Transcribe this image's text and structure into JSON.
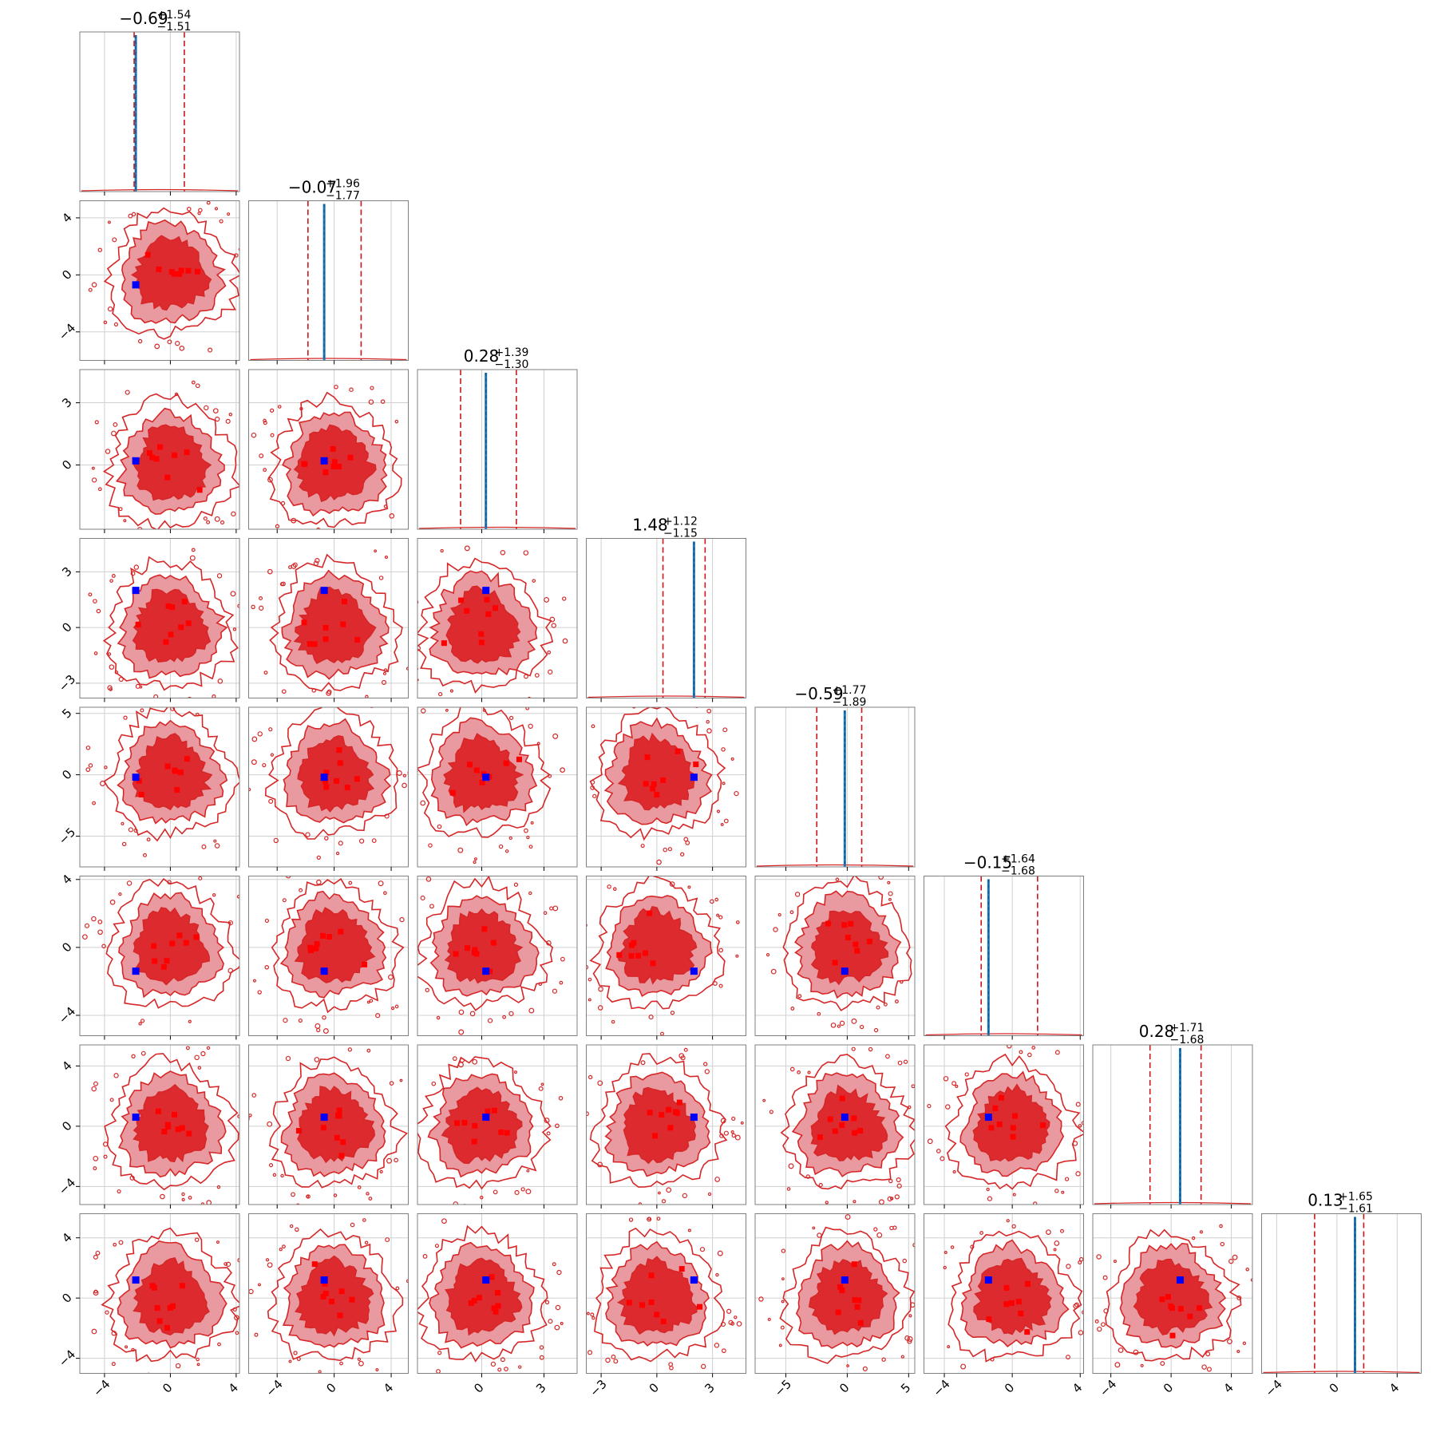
{
  "chart_data": {
    "type": "corner",
    "n_params": 8,
    "grid": true,
    "colors": {
      "contour_line": "#d62728",
      "contour_fill_outer": "#e89aa0",
      "contour_fill_inner": "#dd2a2f",
      "points": "#ff0000",
      "truth_marker": "#0000ff",
      "posterior_line": "#1f77b4",
      "quantile_line": "#c9181d"
    },
    "params": [
      {
        "median": -0.69,
        "plus": "+1.54",
        "minus": "−1.51",
        "title_main": "−0.69",
        "lim": [
          -5.5,
          4.2
        ],
        "ticks": [
          -4,
          0,
          4
        ],
        "tick_labels": [
          "−4",
          "0",
          "4"
        ],
        "q_lo": -2.2,
        "q_hi": 0.85,
        "truth": -2.1,
        "row_ticks_shown": false
      },
      {
        "median": -0.07,
        "plus": "+1.96",
        "minus": "−1.77",
        "title_main": "−0.07",
        "lim": [
          -6.0,
          5.2
        ],
        "ticks": [
          -4,
          0,
          4
        ],
        "tick_labels": [
          "−4",
          "0",
          "4"
        ],
        "q_lo": -1.84,
        "q_hi": 1.89,
        "truth": -0.7,
        "row_ticks_shown": true
      },
      {
        "median": 0.28,
        "plus": "+1.39",
        "minus": "−1.30",
        "title_main": "0.28",
        "lim": [
          -3.1,
          4.6
        ],
        "ticks": [
          0,
          3
        ],
        "tick_labels": [
          "0",
          "3"
        ],
        "q_lo": -1.02,
        "q_hi": 1.67,
        "truth": 0.2,
        "row_ticks_shown": true
      },
      {
        "median": 1.48,
        "plus": "+1.12",
        "minus": "−1.15",
        "title_main": "1.48",
        "lim": [
          -3.8,
          4.8
        ],
        "ticks": [
          -3,
          0,
          3
        ],
        "tick_labels": [
          "−3",
          "0",
          "3"
        ],
        "q_lo": 0.33,
        "q_hi": 2.6,
        "truth": 2.0,
        "row_ticks_shown": true
      },
      {
        "median": -0.59,
        "plus": "+1.77",
        "minus": "−1.89",
        "title_main": "−0.59",
        "lim": [
          -7.5,
          5.5
        ],
        "ticks": [
          -5,
          0,
          5
        ],
        "tick_labels": [
          "−5",
          "0",
          "5"
        ],
        "q_lo": -2.48,
        "q_hi": 1.18,
        "truth": -0.2,
        "row_ticks_shown": true
      },
      {
        "median": -0.15,
        "plus": "+1.64",
        "minus": "−1.68",
        "title_main": "−0.15",
        "lim": [
          -5.2,
          4.2
        ],
        "ticks": [
          -4,
          0,
          4
        ],
        "tick_labels": [
          "−4",
          "0",
          "4"
        ],
        "q_lo": -1.83,
        "q_hi": 1.49,
        "truth": -1.4,
        "row_ticks_shown": true
      },
      {
        "median": 0.28,
        "plus": "+1.71",
        "minus": "−1.68",
        "title_main": "0.28",
        "lim": [
          -5.2,
          5.4
        ],
        "ticks": [
          -4,
          0,
          4
        ],
        "tick_labels": [
          "−4",
          "0",
          "4"
        ],
        "q_lo": -1.4,
        "q_hi": 1.99,
        "truth": 0.6,
        "row_ticks_shown": true
      },
      {
        "median": 0.13,
        "plus": "+1.65",
        "minus": "−1.61",
        "title_main": "0.13",
        "lim": [
          -5.0,
          5.6
        ],
        "ticks": [
          -4,
          0,
          4
        ],
        "tick_labels": [
          "−4",
          "0",
          "4"
        ],
        "q_lo": -1.48,
        "q_hi": 1.78,
        "truth": 1.2,
        "row_ticks_shown": true
      }
    ]
  }
}
